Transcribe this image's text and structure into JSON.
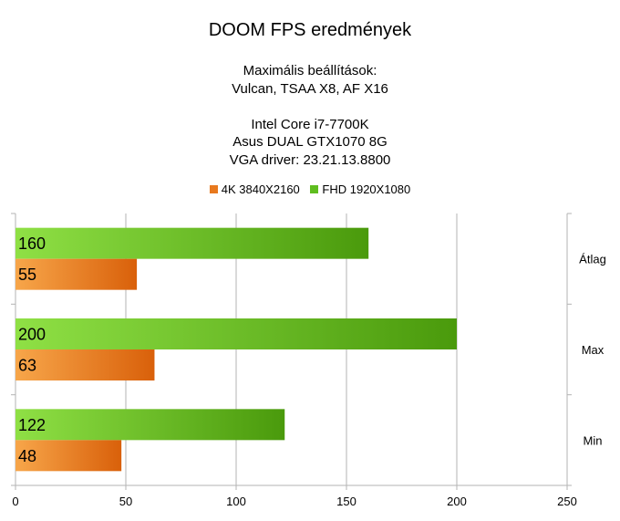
{
  "chart_data": {
    "type": "bar",
    "orientation": "horizontal",
    "title": "DOOM FPS eredmények",
    "subtitle_lines": [
      "Maximális beállítások:",
      "Vulcan, TSAA X8, AF X16",
      "",
      "Intel Core i7-7700K",
      "Asus DUAL GTX1070 8G",
      "VGA driver: 23.21.13.8800"
    ],
    "categories": [
      "Átlag",
      "Max",
      "Min"
    ],
    "series": [
      {
        "name": "4K 3840X2160",
        "values": [
          55,
          63,
          48
        ],
        "color": "#e8791e"
      },
      {
        "name": "FHD 1920X1080",
        "values": [
          160,
          200,
          122
        ],
        "color": "#5fbd1f"
      }
    ],
    "xlim": [
      0,
      250
    ],
    "xticks": [
      "0",
      "50",
      "100",
      "150",
      "200",
      "250"
    ],
    "grid": true,
    "legend_position": "top",
    "data_labels": true
  }
}
